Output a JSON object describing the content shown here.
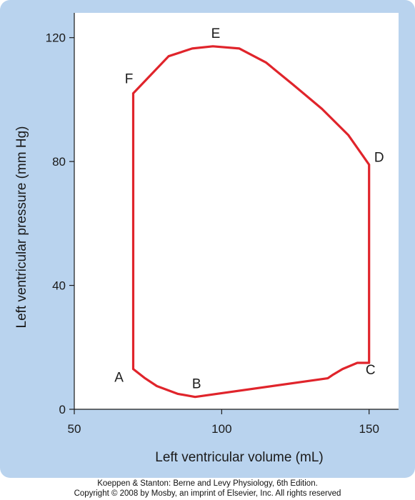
{
  "chart_data": {
    "type": "line",
    "title": "",
    "xlabel": "Left ventricular volume (mL)",
    "ylabel": "Left ventricular pressure (mm Hg)",
    "xlim": [
      50,
      160
    ],
    "ylim": [
      0,
      128
    ],
    "xticks": [
      50,
      100,
      150
    ],
    "yticks": [
      0,
      40,
      80,
      120
    ],
    "grid": false,
    "series": [
      {
        "color": "#e0242b",
        "points": [
          [
            70,
            102
          ],
          [
            82,
            114
          ],
          [
            90,
            116.5
          ],
          [
            97,
            117.2
          ],
          [
            106,
            116.5
          ],
          [
            115,
            112
          ],
          [
            124,
            105
          ],
          [
            134,
            97
          ],
          [
            143,
            88.5
          ],
          [
            150,
            79
          ],
          [
            150,
            15
          ],
          [
            146,
            15
          ],
          [
            141,
            13
          ],
          [
            137.5,
            11
          ],
          [
            136,
            10
          ],
          [
            91,
            4
          ],
          [
            85,
            5
          ],
          [
            78,
            7.5
          ],
          [
            74,
            10
          ],
          [
            70,
            13
          ],
          [
            70,
            102
          ]
        ]
      }
    ],
    "point_labels": [
      {
        "label": "A",
        "x": 70,
        "y": 13
      },
      {
        "label": "B",
        "x": 91,
        "y": 4
      },
      {
        "label": "C",
        "x": 150,
        "y": 15
      },
      {
        "label": "D",
        "x": 150,
        "y": 79
      },
      {
        "label": "E",
        "x": 97,
        "y": 117.2
      },
      {
        "label": "F",
        "x": 70,
        "y": 102
      }
    ]
  },
  "credits": {
    "line1": "Koeppen & Stanton: Berne and Levy Physiology, 6th Edition.",
    "line2": "Copyright © 2008 by Mosby, an imprint of Elsevier, Inc. All rights reserved"
  }
}
